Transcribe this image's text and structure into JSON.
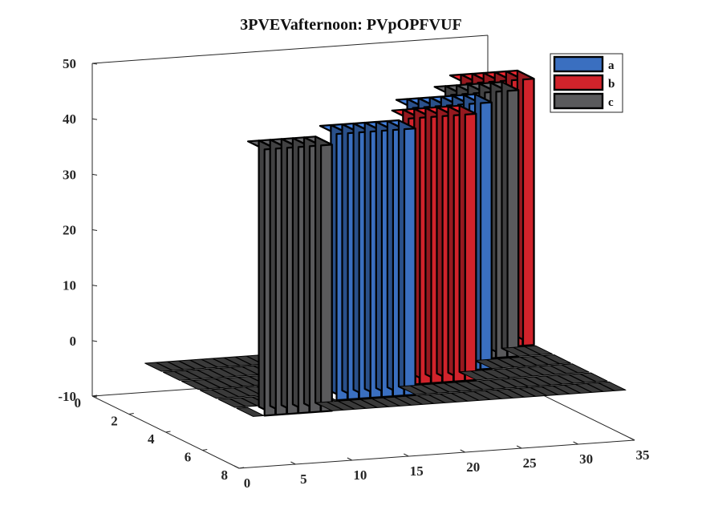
{
  "chart_data": {
    "type": "3d-bar",
    "title": "3PVEVafternoon: PVpOPFVUF",
    "xlabel": "",
    "ylabel": "",
    "zlabel": "",
    "xlim": [
      0,
      35
    ],
    "ylim": [
      0,
      8
    ],
    "zlim": [
      -10,
      50
    ],
    "x_ticks": [
      "0",
      "5",
      "10",
      "15",
      "20",
      "25",
      "30",
      "35"
    ],
    "y_ticks": [
      "0",
      "2",
      "4",
      "6",
      "8"
    ],
    "z_ticks": [
      "-10",
      "0",
      "10",
      "20",
      "30",
      "40",
      "50"
    ],
    "legend": {
      "position": "top-right",
      "entries": [
        "a",
        "b",
        "c"
      ]
    },
    "series_colors": {
      "a": "#3a6fc0",
      "b": "#d1232b",
      "c": "#5a5a5c"
    },
    "x": [
      1,
      2,
      3,
      4,
      5,
      6,
      7,
      8,
      9,
      10,
      11,
      12,
      13,
      14,
      15,
      16,
      17,
      18,
      19,
      20,
      21,
      22,
      23,
      24,
      25,
      26,
      27,
      28,
      29,
      30,
      31,
      32,
      33
    ],
    "series": [
      {
        "name": "c",
        "row": 8,
        "values": [
          0,
          48,
          48,
          48,
          48,
          48,
          48,
          0,
          0,
          0,
          0,
          0,
          0,
          0,
          0,
          0,
          0,
          0,
          0,
          0,
          0,
          0,
          0,
          0,
          0,
          0,
          0,
          0,
          0,
          0,
          0,
          0,
          0
        ]
      },
      {
        "name": "a",
        "row": 7,
        "values": [
          0,
          0,
          0,
          0,
          0,
          0,
          0,
          0,
          0,
          48,
          48,
          48,
          48,
          48,
          48,
          48,
          0,
          0,
          0,
          0,
          0,
          0,
          0,
          0,
          0,
          0,
          0,
          0,
          0,
          0,
          0,
          0,
          0
        ]
      },
      {
        "name": "b",
        "row": 6,
        "values": [
          0,
          0,
          0,
          0,
          0,
          0,
          0,
          0,
          0,
          0,
          0,
          0,
          0,
          0,
          0,
          0,
          0,
          48,
          48,
          48,
          48,
          48,
          48,
          0,
          0,
          0,
          0,
          0,
          0,
          0,
          0,
          0,
          0
        ]
      },
      {
        "name": "a",
        "row": 5,
        "values": [
          0,
          0,
          0,
          0,
          0,
          0,
          0,
          0,
          0,
          0,
          0,
          0,
          0,
          0,
          0,
          0,
          0,
          0,
          0,
          48,
          48,
          48,
          48,
          48,
          48,
          48,
          0,
          0,
          0,
          0,
          0,
          0,
          0
        ]
      },
      {
        "name": "c",
        "row": 4,
        "values": [
          0,
          0,
          0,
          0,
          0,
          0,
          0,
          0,
          0,
          0,
          0,
          0,
          0,
          0,
          0,
          0,
          0,
          0,
          0,
          0,
          0,
          0,
          0,
          0,
          48,
          48,
          48,
          48,
          48,
          48,
          0,
          0,
          0
        ]
      },
      {
        "name": "b",
        "row": 3,
        "values": [
          0,
          0,
          0,
          0,
          0,
          0,
          0,
          0,
          0,
          0,
          0,
          0,
          0,
          0,
          0,
          0,
          0,
          0,
          0,
          0,
          0,
          0,
          0,
          0,
          0,
          0,
          0,
          48,
          48,
          48,
          48,
          48,
          48
        ]
      }
    ]
  }
}
